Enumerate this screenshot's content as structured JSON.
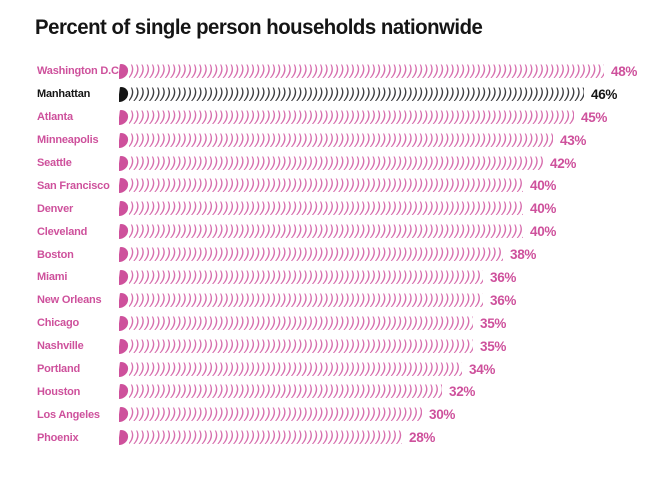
{
  "title": "Percent of single person households nationwide",
  "colors": {
    "pink": "#ce519c",
    "tick_pink": "#d76fae",
    "black": "#151515",
    "tick_black": "#3c3c40",
    "background": "#ffffff"
  },
  "chart_data": {
    "type": "bar",
    "orientation": "horizontal",
    "title": "Percent of single person households nationwide",
    "xlabel": "",
    "ylabel": "",
    "unit": "%",
    "xlim": [
      0,
      50
    ],
    "grid": false,
    "legend": false,
    "bar_style": "repeated-parenthesis-glyphs",
    "highlight_category": "Manhattan",
    "categories": [
      "Washington D.C.",
      "Manhattan",
      "Atlanta",
      "Minneapolis",
      "Seattle",
      "San Francisco",
      "Denver",
      "Cleveland",
      "Boston",
      "Miami",
      "New Orleans",
      "Chicago",
      "Nashville",
      "Portland",
      "Houston",
      "Los Angeles",
      "Phoenix"
    ],
    "values": [
      48,
      46,
      45,
      43,
      42,
      40,
      40,
      40,
      38,
      36,
      36,
      35,
      35,
      34,
      32,
      30,
      28
    ],
    "rows": [
      {
        "city": "Washington D.C.",
        "value": 48,
        "label": "48%",
        "highlight": false
      },
      {
        "city": "Manhattan",
        "value": 46,
        "label": "46%",
        "highlight": true
      },
      {
        "city": "Atlanta",
        "value": 45,
        "label": "45%",
        "highlight": false
      },
      {
        "city": "Minneapolis",
        "value": 43,
        "label": "43%",
        "highlight": false
      },
      {
        "city": "Seattle",
        "value": 42,
        "label": "42%",
        "highlight": false
      },
      {
        "city": "San Francisco",
        "value": 40,
        "label": "40%",
        "highlight": false
      },
      {
        "city": "Denver",
        "value": 40,
        "label": "40%",
        "highlight": false
      },
      {
        "city": "Cleveland",
        "value": 40,
        "label": "40%",
        "highlight": false
      },
      {
        "city": "Boston",
        "value": 38,
        "label": "38%",
        "highlight": false
      },
      {
        "city": "Miami",
        "value": 36,
        "label": "36%",
        "highlight": false
      },
      {
        "city": "New Orleans",
        "value": 36,
        "label": "36%",
        "highlight": false
      },
      {
        "city": "Chicago",
        "value": 35,
        "label": "35%",
        "highlight": false
      },
      {
        "city": "Nashville",
        "value": 35,
        "label": "35%",
        "highlight": false
      },
      {
        "city": "Portland",
        "value": 34,
        "label": "34%",
        "highlight": false
      },
      {
        "city": "Houston",
        "value": 32,
        "label": "32%",
        "highlight": false
      },
      {
        "city": "Los Angeles",
        "value": 30,
        "label": "30%",
        "highlight": false
      },
      {
        "city": "Phoenix",
        "value": 28,
        "label": "28%",
        "highlight": false
      }
    ]
  }
}
